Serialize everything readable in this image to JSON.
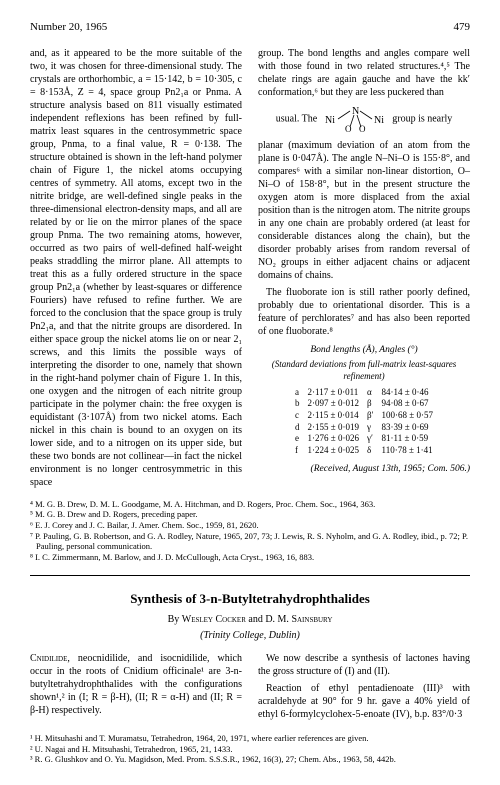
{
  "header": {
    "issue": "Number 20, 1965",
    "page": "479"
  },
  "col1": {
    "p1": "and, as it appeared to be the more suitable of the two, it was chosen for three-dimensional study. The crystals are orthorhombic, a = 15·142, b = 10·305, c = 8·153Å, Z = 4, space group Pn2₁a or Pnma. A structure analysis based on 811 visually estimated independent reflexions has been refined by full-matrix least squares in the centrosymmetric space group, Pnma, to a final value, R = 0·138. The structure obtained is shown in the left-hand polymer chain of Figure 1, the nickel atoms occupying centres of symmetry. All atoms, except two in the nitrite bridge, are well-defined single peaks in the three-dimensional electron-density maps, and all are related by or lie on the mirror planes of the space group Pnma. The two remaining atoms, however, occurred as two pairs of well-defined half-weight peaks straddling the mirror plane. All attempts to treat this as a fully ordered structure in the space group Pn2₁a (whether by least-squares or difference Fouriers) have refused to refine further. We are forced to the conclusion that the space group is truly Pn2₁a, and that the nitrite groups are disordered. In either space group the nickel atoms lie on or near 2₁ screws, and this limits the possible ways of interpreting the disorder to one, namely that shown in the right-hand polymer chain of Figure 1. In this, one oxygen and the nitrogen of each nitrite group participate in the polymer chain: the free oxygen is equidistant (3·107Å) from two nickel atoms. Each nickel in this chain is bound to an oxygen on its lower side, and to a nitrogen on its upper side, but these two bonds are not collinear—in fact the nickel environment is no longer centrosymmetric in this space"
  },
  "col2": {
    "p1": "group. The bond lengths and angles compare well with those found in two related structures.⁴,⁵ The chelate rings are again gauche and have the kk′ conformation,⁶ but they are less puckered than",
    "diag_left": "usual. The",
    "diag_right": "group is nearly",
    "p2": "planar (maximum deviation of an atom from the plane is 0·047Å). The angle N–Ni–O is 155·8°, and compares⁶ with a similar non-linear distortion, O–Ni–O of 158·8°, but in the present structure the oxygen atom is more displaced from the axial position than is the nitrogen atom. The nitrite groups in any one chain are probably ordered (at least for considerable distances along the chain), but the disorder probably arises from random reversal of NO₂ groups in either adjacent chains or adjacent domains of chains.",
    "p3": "The fluoborate ion is still rather poorly defined, probably due to orientational disorder. This is a feature of perchlorates⁷ and has also been reported of one fluoborate.⁸"
  },
  "table": {
    "caption": "Bond lengths (Å), Angles (°)",
    "sub": "(Standard deviations from full-matrix least-squares refinement)",
    "rows": [
      [
        "a",
        "2·117 ± 0·011",
        "α",
        "84·14 ± 0·46"
      ],
      [
        "b",
        "2·097 ± 0·012",
        "β",
        "94·08 ± 0·67"
      ],
      [
        "c",
        "2·115 ± 0·014",
        "β′",
        "100·68 ± 0·57"
      ],
      [
        "d",
        "2·155 ± 0·019",
        "γ",
        "83·39 ± 0·69"
      ],
      [
        "e",
        "1·276 ± 0·026",
        "γ′",
        "81·11 ± 0·59"
      ],
      [
        "f",
        "1·224 ± 0·025",
        "δ",
        "110·78 ± 1·41"
      ]
    ]
  },
  "received": "(Received, August 13th, 1965; Com. 506.)",
  "refs1": [
    "⁴ M. G. B. Drew, D. M. L. Goodgame, M. A. Hitchman, and D. Rogers, Proc. Chem. Soc., 1964, 363.",
    "⁵ M. G. B. Drew and D. Rogers, preceding paper.",
    "⁶ E. J. Corey and J. C. Bailar, J. Amer. Chem. Soc., 1959, 81, 2620.",
    "⁷ P. Pauling, G. B. Robertson, and G. A. Rodley, Nature, 1965, 207, 73; J. Lewis, R. S. Nyholm, and G. A. Rodley, ibid., p. 72; P. Pauling, personal communication.",
    "⁸ I. C. Zimmermann, M. Barlow, and J. D. McCullough, Acta Cryst., 1963, 16, 883."
  ],
  "article2": {
    "title": "Synthesis of 3-n-Butyltetrahydrophthalides",
    "authors": "By Wesley Cocker and D. M. Sainsbury",
    "affil": "(Trinity College, Dublin)"
  },
  "col3": {
    "p1a": "Cnidilide,",
    "p1b": " neocnidilide, and isocnidilide, which occur in the roots of Cnidium officinale¹ are 3-n-butyltetrahydrophthalides with the configurations shown¹,² in (I; R = β-H), (II; R = α-H) and (II; R = β-H) respectively."
  },
  "col4": {
    "p1": "We now describe a synthesis of lactones having the gross structure of (I) and (II).",
    "p2": "Reaction of ethyl pentadienoate (III)³ with acraldehyde at 90° for 9 hr. gave a 40% yield of ethyl 6-formylcyclohex-5-enoate (IV), b.p. 83°/0·3"
  },
  "refs2": [
    "¹ H. Mitsuhashi and T. Muramatsu, Tetrahedron, 1964, 20, 1971, where earlier references are given.",
    "² U. Nagai and H. Mitsuhashi, Tetrahedron, 1965, 21, 1433.",
    "³ R. G. Glushkov and O. Yu. Magidson, Med. Prom. S.S.S.R., 1962, 16(3), 27; Chem. Abs., 1963, 58, 442b."
  ]
}
